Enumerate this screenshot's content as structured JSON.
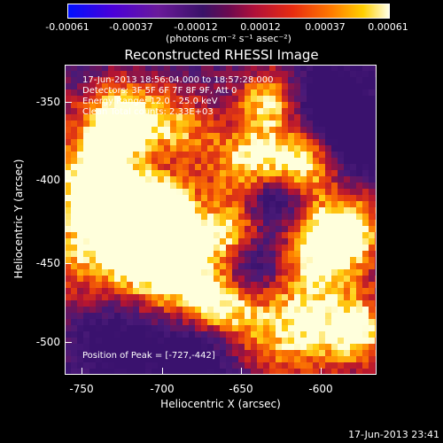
{
  "colorbar": {
    "ticks": [
      "-0.00061",
      "-0.00037",
      "-0.00012",
      "0.00012",
      "0.00037",
      "0.00061"
    ],
    "unit_label": "(photons cm⁻² s⁻¹ asec⁻²)"
  },
  "title": "Reconstructed RHESSI Image",
  "info": {
    "time_range": "17-Jun-2013 18:56:04.000 to 18:57:28.000",
    "detectors": "Detectors: 3F 5F 6F 7F 8F 9F, Att 0",
    "energy": "Energy Range: 12.0 - 25.0 keV",
    "clean": "Clean     Total counts: 2.33E+03",
    "peak": "Position of Peak = [-727,-442]"
  },
  "axes": {
    "xlabel": "Heliocentric X (arcsec)",
    "ylabel": "Heliocentric Y (arcsec)",
    "xticks": [
      "-750",
      "-700",
      "-650",
      "-600"
    ],
    "yticks": [
      "-350",
      "-400",
      "-450",
      "-500"
    ]
  },
  "timestamp": "17-Jun-2013 23:41"
}
